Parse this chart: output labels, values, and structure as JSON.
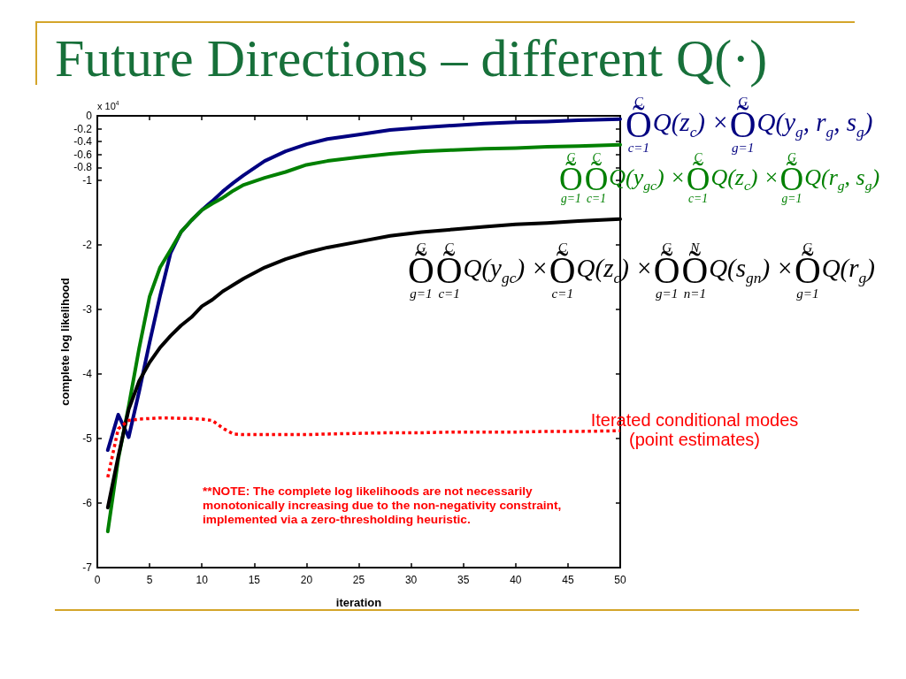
{
  "chart_data": {
    "type": "line",
    "title": "Future Directions – different Q(·)",
    "xlabel": "iteration",
    "ylabel": "complete log likelihood",
    "annotations": [
      "x 10$^{4}$",
      "**NOTE: The complete log likelihoods are not necessarily monotonically increasing due to the non-negativity constraint, implemented via a zero-thresholding heuristic."
    ],
    "x": [
      1,
      2,
      3,
      4,
      5,
      6,
      7,
      8,
      9,
      10,
      11,
      12,
      13,
      14,
      16,
      18,
      20,
      22,
      25,
      28,
      31,
      34,
      37,
      40,
      43,
      46,
      50
    ],
    "series": [
      {
        "name": "$^{C}$Õ$_{c=1}$Q(z$_{c}$) ×$^{G}$Õ$_{g=1}$Q(y$_{g}$, r$_{g}$, s$_{g}$)",
        "color": "#000080",
        "values": [
          -5.18,
          -4.63,
          -4.98,
          -4.27,
          -3.51,
          -2.79,
          -2.13,
          -1.8,
          -1.62,
          -1.46,
          -1.32,
          -1.17,
          -1.04,
          -0.92,
          -0.7,
          -0.55,
          -0.44,
          -0.36,
          -0.29,
          -0.22,
          -0.18,
          -0.15,
          -0.12,
          -0.1,
          -0.09,
          -0.07,
          -0.05
        ]
      },
      {
        "name": "$^{G}$Õ$_{g=1}$$^{C}$Õ$_{c=1}$Q(y$_{gc}$) ×$^{C}$Õ$_{c=1}$Q(z$_{c}$) ×$^{G}$Õ$_{g=1}$Q(r$_{g}$, s$_{g}$)",
        "color": "#008000",
        "values": [
          -6.44,
          -5.32,
          -4.5,
          -3.6,
          -2.8,
          -2.35,
          -2.08,
          -1.8,
          -1.62,
          -1.46,
          -1.36,
          -1.27,
          -1.16,
          -1.07,
          -0.96,
          -0.87,
          -0.76,
          -0.7,
          -0.64,
          -0.59,
          -0.55,
          -0.53,
          -0.51,
          -0.5,
          -0.48,
          -0.47,
          -0.45
        ]
      },
      {
        "name": "$^{G}$Õ$_{g=1}$$^{C}$Õ$_{c=1}$Q(y$_{gc}$) ×$^{C}$Õ$_{c=1}$Q(z$_{c}$) ×$^{G}$Õ$_{g=1}$$^{N}$Õ$_{n=1}$Q(s$_{gn}$) ×$^{G}$Õ$_{g=1}$Q(r$_{g}$)",
        "color": "#000000",
        "values": [
          -6.07,
          -5.28,
          -4.55,
          -4.11,
          -3.82,
          -3.59,
          -3.41,
          -3.25,
          -3.12,
          -2.95,
          -2.85,
          -2.72,
          -2.62,
          -2.52,
          -2.35,
          -2.22,
          -2.12,
          -2.04,
          -1.95,
          -1.86,
          -1.8,
          -1.76,
          -1.72,
          -1.68,
          -1.66,
          -1.63,
          -1.6
        ]
      },
      {
        "name": "Iterated conditional modes (point estimates)",
        "color": "#ff0000",
        "line_style": "dotted",
        "values": [
          -5.6,
          -4.85,
          -4.72,
          -4.7,
          -4.69,
          -4.68,
          -4.68,
          -4.69,
          -4.69,
          -4.7,
          -4.72,
          -4.84,
          -4.93,
          -4.94,
          -4.94,
          -4.94,
          -4.94,
          -4.93,
          -4.92,
          -4.91,
          -4.91,
          -4.9,
          -4.9,
          -4.9,
          -4.89,
          -4.89,
          -4.88
        ]
      }
    ],
    "xlim": [
      0,
      50
    ],
    "xticks": [
      0,
      5,
      10,
      15,
      20,
      25,
      30,
      35,
      40,
      45,
      50
    ],
    "ylim": [
      -7,
      0
    ],
    "yticks": [
      0,
      -0.2,
      -0.4,
      -0.6,
      -0.8,
      -1,
      -2,
      -3,
      -4,
      -5,
      -6,
      -7
    ],
    "marker": "none",
    "line_style": "solid"
  }
}
